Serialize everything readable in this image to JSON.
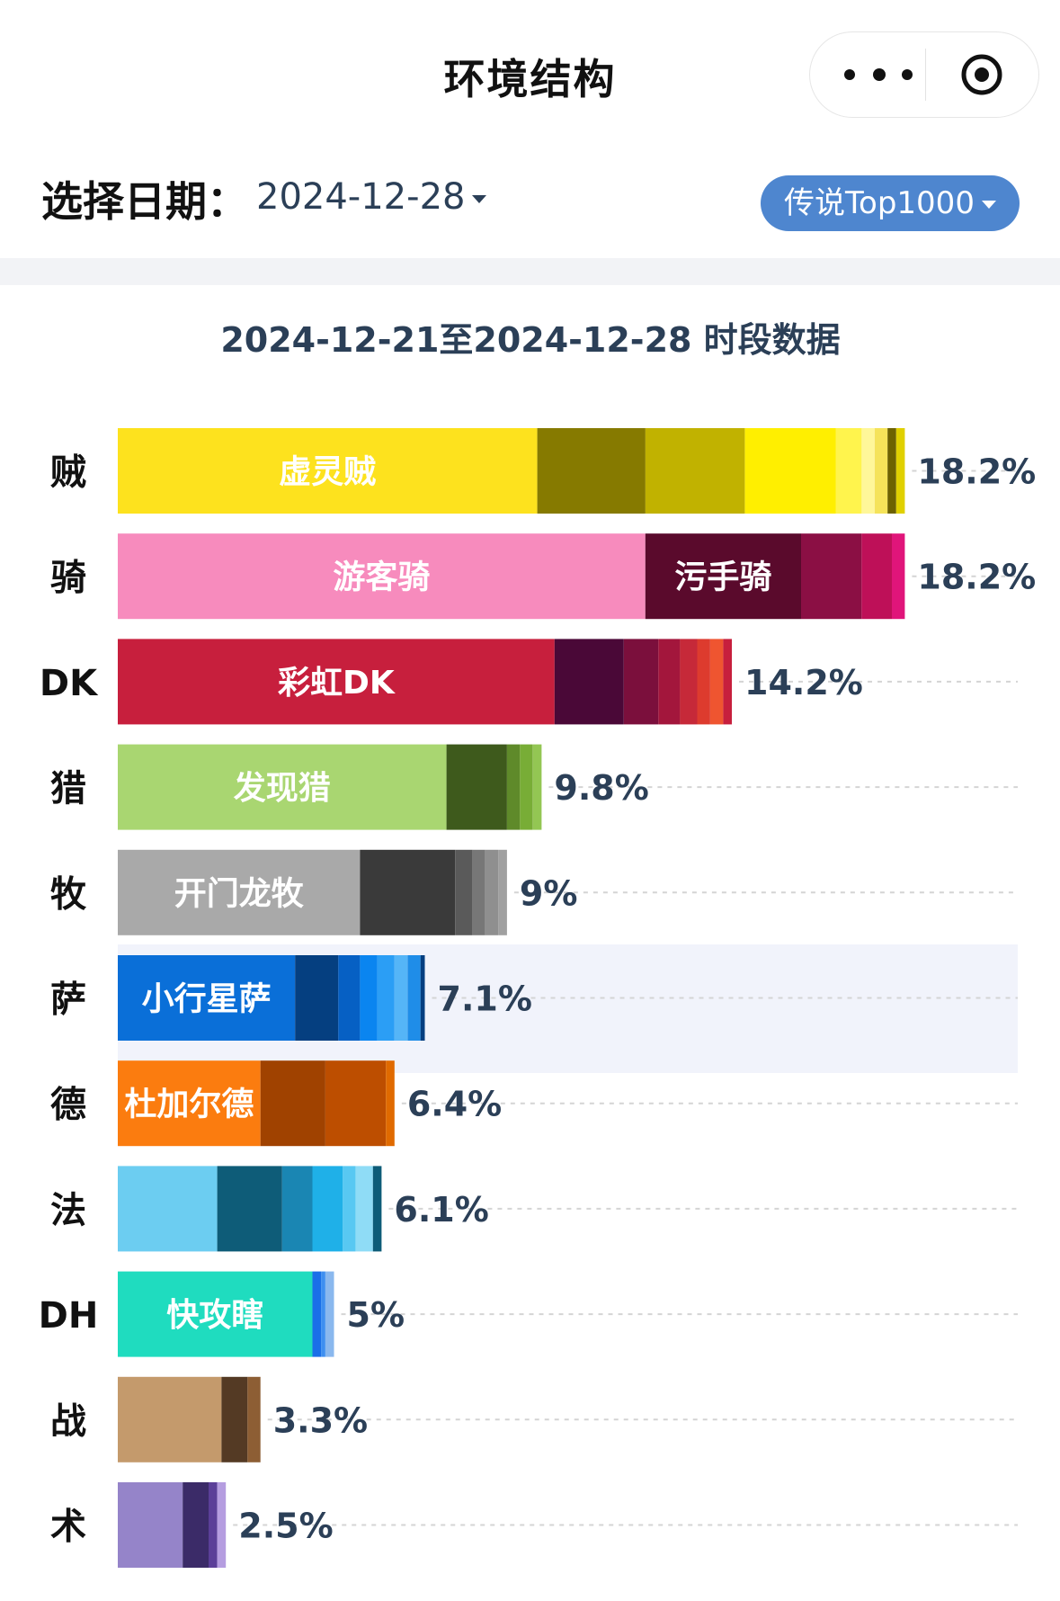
{
  "app": {
    "title": "环境结构"
  },
  "capsule": {
    "more_icon": "more-dots-icon",
    "target_icon": "target-icon"
  },
  "filters": {
    "date_label": "选择日期：",
    "date_value": "2024-12-28",
    "rank_label": "传说Top1000"
  },
  "colors": {
    "accent": "#4e86cf",
    "text_dark": "#2b3f57",
    "highlight_row": "#f1f3fb"
  },
  "chart_data": {
    "type": "bar",
    "orientation": "horizontal",
    "stacked": true,
    "title": "2024-12-21至2024-12-28 时段数据",
    "xlabel": "",
    "ylabel": "",
    "xlim": [
      0,
      20
    ],
    "grid": "dashed",
    "legend": "none",
    "highlighted_category": "萨",
    "categories": [
      "贼",
      "骑",
      "DK",
      "猎",
      "牧",
      "萨",
      "德",
      "法",
      "DH",
      "战",
      "术"
    ],
    "bars": [
      {
        "category": "贼",
        "total_label": "18.2%",
        "total": 18.2,
        "segments": [
          {
            "label": "虚灵贼",
            "value": 9.7,
            "color": "#fde21e"
          },
          {
            "value": 2.5,
            "color": "#867a00"
          },
          {
            "value": 2.3,
            "color": "#c1b200"
          },
          {
            "value": 2.1,
            "color": "#ffef00"
          },
          {
            "value": 0.6,
            "color": "#fff44d"
          },
          {
            "value": 0.3,
            "color": "#fff799"
          },
          {
            "value": 0.3,
            "color": "#f5e35a"
          },
          {
            "value": 0.2,
            "color": "#6d6200"
          },
          {
            "value": 0.2,
            "color": "#e0d000"
          }
        ]
      },
      {
        "category": "骑",
        "total_label": "18.2%",
        "total": 18.2,
        "segments": [
          {
            "label": "游客骑",
            "value": 12.2,
            "color": "#f78bbd"
          },
          {
            "label": "污手骑",
            "value": 3.6,
            "color": "#5a0a2c"
          },
          {
            "value": 1.4,
            "color": "#8b0f44"
          },
          {
            "value": 0.7,
            "color": "#be1058"
          },
          {
            "value": 0.3,
            "color": "#e0157a"
          }
        ]
      },
      {
        "category": "DK",
        "total_label": "14.2%",
        "total": 14.2,
        "segments": [
          {
            "label": "彩虹DK",
            "value": 10.1,
            "color": "#c71f3d"
          },
          {
            "value": 1.6,
            "color": "#4a0837"
          },
          {
            "value": 0.8,
            "color": "#7b0f3c"
          },
          {
            "value": 0.5,
            "color": "#a3163c"
          },
          {
            "value": 0.4,
            "color": "#c62939"
          },
          {
            "value": 0.3,
            "color": "#dd3b2e"
          },
          {
            "value": 0.3,
            "color": "#ef5530"
          },
          {
            "value": 0.2,
            "color": "#c71f3d"
          }
        ]
      },
      {
        "category": "猎",
        "total_label": "9.8%",
        "total": 9.8,
        "segments": [
          {
            "label": "发现猎",
            "value": 7.6,
            "color": "#a9d671"
          },
          {
            "value": 1.4,
            "color": "#3e5a1c"
          },
          {
            "value": 0.3,
            "color": "#5f8a2a"
          },
          {
            "value": 0.3,
            "color": "#78ad36"
          },
          {
            "value": 0.2,
            "color": "#93c653"
          }
        ]
      },
      {
        "category": "牧",
        "total_label": "9%",
        "total": 9.0,
        "segments": [
          {
            "label": "开门龙牧",
            "value": 5.6,
            "color": "#a9a9a9"
          },
          {
            "value": 2.2,
            "color": "#3a3a3a"
          },
          {
            "value": 0.4,
            "color": "#5a5a5a"
          },
          {
            "value": 0.3,
            "color": "#777777"
          },
          {
            "value": 0.3,
            "color": "#8f8f8f"
          },
          {
            "value": 0.2,
            "color": "#a0a0a0"
          }
        ]
      },
      {
        "category": "萨",
        "total_label": "7.1%",
        "total": 7.1,
        "segments": [
          {
            "label": "小行星萨",
            "value": 4.1,
            "color": "#0a6fd8"
          },
          {
            "value": 1.0,
            "color": "#053f80"
          },
          {
            "value": 0.5,
            "color": "#0660c4"
          },
          {
            "value": 0.4,
            "color": "#0a85f0"
          },
          {
            "value": 0.4,
            "color": "#2b9ef5"
          },
          {
            "value": 0.3,
            "color": "#55b5f7"
          },
          {
            "value": 0.3,
            "color": "#1f8de8"
          },
          {
            "value": 0.1,
            "color": "#053f80"
          }
        ]
      },
      {
        "category": "德",
        "total_label": "6.4%",
        "total": 6.4,
        "segments": [
          {
            "label": "杜加尔德",
            "value": 3.3,
            "color": "#fb7c0f"
          },
          {
            "value": 1.5,
            "color": "#a04200"
          },
          {
            "value": 1.4,
            "color": "#bd4e00"
          },
          {
            "value": 0.2,
            "color": "#e06a00"
          }
        ]
      },
      {
        "category": "法",
        "total_label": "6.1%",
        "total": 6.1,
        "segments": [
          {
            "value": 2.3,
            "color": "#6ccdf1"
          },
          {
            "value": 1.5,
            "color": "#0e5c78"
          },
          {
            "value": 0.7,
            "color": "#1a86b3"
          },
          {
            "value": 0.7,
            "color": "#1fb0e8"
          },
          {
            "value": 0.3,
            "color": "#58c8f2"
          },
          {
            "value": 0.4,
            "color": "#8fdcf6"
          },
          {
            "value": 0.2,
            "color": "#0e5c78"
          }
        ]
      },
      {
        "category": "DH",
        "total_label": "5%",
        "total": 5.0,
        "segments": [
          {
            "label": "快攻瞎",
            "value": 4.5,
            "color": "#1fdcbf"
          },
          {
            "value": 0.2,
            "color": "#1a6fe8"
          },
          {
            "value": 0.1,
            "color": "#3e8ff0"
          },
          {
            "value": 0.2,
            "color": "#8ab8ee"
          }
        ]
      },
      {
        "category": "战",
        "total_label": "3.3%",
        "total": 3.3,
        "segments": [
          {
            "value": 2.4,
            "color": "#c49a6c"
          },
          {
            "value": 0.6,
            "color": "#543a24"
          },
          {
            "value": 0.3,
            "color": "#8d5e34"
          }
        ]
      },
      {
        "category": "术",
        "total_label": "2.5%",
        "total": 2.5,
        "segments": [
          {
            "value": 1.5,
            "color": "#9584c9"
          },
          {
            "value": 0.6,
            "color": "#3b2b68"
          },
          {
            "value": 0.2,
            "color": "#5b3f98"
          },
          {
            "value": 0.2,
            "color": "#b59de0"
          }
        ]
      }
    ]
  }
}
